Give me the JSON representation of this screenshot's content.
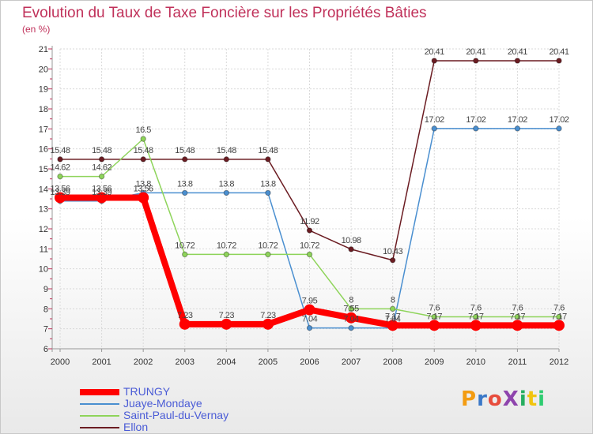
{
  "chart_data": {
    "type": "line",
    "title": "Evolution du Taux de Taxe Foncière sur les Propriétés Bâties",
    "unit_label": "(en %)",
    "xlabel": "",
    "ylabel": "",
    "ylim": [
      6,
      21
    ],
    "grid": true,
    "x": [
      "2000",
      "2001",
      "2002",
      "2003",
      "2004",
      "2005",
      "2006",
      "2007",
      "2008",
      "2009",
      "2010",
      "2011",
      "2012"
    ],
    "y_ticks": [
      "6",
      "7",
      "8",
      "9",
      "10",
      "11",
      "12",
      "13",
      "14",
      "15",
      "16",
      "17",
      "18",
      "19",
      "20",
      "21"
    ],
    "legend_position": "bottom-left",
    "series": [
      {
        "name": "Ellon",
        "color": "#6b1c22",
        "values": [
          15.48,
          15.48,
          15.48,
          15.48,
          15.48,
          15.48,
          11.92,
          10.98,
          10.43,
          20.41,
          20.41,
          20.41,
          20.41
        ],
        "labels": [
          "15.48",
          "15.48",
          "15.48",
          "15.48",
          "15.48",
          "15.48",
          "11.92",
          "10.98",
          "10.43",
          "20.41",
          "20.41",
          "20.41",
          "20.41"
        ]
      },
      {
        "name": "Juaye-Mondaye",
        "color": "#4a8fd0",
        "values": [
          13.39,
          13.39,
          13.8,
          13.8,
          13.8,
          13.8,
          7.04,
          7.04,
          7.04,
          17.02,
          17.02,
          17.02,
          17.02
        ],
        "labels": [
          "13.39",
          "13.39",
          "13.8",
          "13.8",
          "13.8",
          "13.8",
          "7.04",
          "7.04",
          "7.04",
          "17.02",
          "17.02",
          "17.02",
          "17.02"
        ]
      },
      {
        "name": "Saint-Paul-du-Vernay",
        "color": "#8ed45a",
        "values": [
          14.62,
          14.62,
          16.5,
          10.72,
          10.72,
          10.72,
          10.72,
          8,
          8,
          7.6,
          7.6,
          7.6,
          7.6
        ],
        "labels": [
          "14.62",
          "14.62",
          "16.5",
          "10.72",
          "10.72",
          "10.72",
          "10.72",
          "8",
          "8",
          "7.6",
          "7.6",
          "7.6",
          "7.6"
        ]
      },
      {
        "name": "TRUNGY",
        "color": "#ff0000",
        "values": [
          13.56,
          13.56,
          13.56,
          7.23,
          7.23,
          7.23,
          7.95,
          7.55,
          7.17,
          7.17,
          7.17,
          7.17,
          7.17
        ],
        "labels": [
          "13.56",
          "13.56",
          "13.56",
          "7.23",
          "7.23",
          "7.23",
          "7.95",
          "7.55",
          "7.17",
          "7.17",
          "7.17",
          "7.17",
          "7.17"
        ]
      }
    ],
    "legend": [
      "TRUNGY",
      "Juaye-Mondaye",
      "Saint-Paul-du-Vernay",
      "Ellon"
    ]
  },
  "logo": {
    "text": "ProXiti",
    "letter_colors": [
      "#f39c12",
      "#3a78c8",
      "#e74c3c",
      "#8e44ad",
      "#27ae60",
      "#f1c40f",
      "#2ecc71"
    ]
  }
}
